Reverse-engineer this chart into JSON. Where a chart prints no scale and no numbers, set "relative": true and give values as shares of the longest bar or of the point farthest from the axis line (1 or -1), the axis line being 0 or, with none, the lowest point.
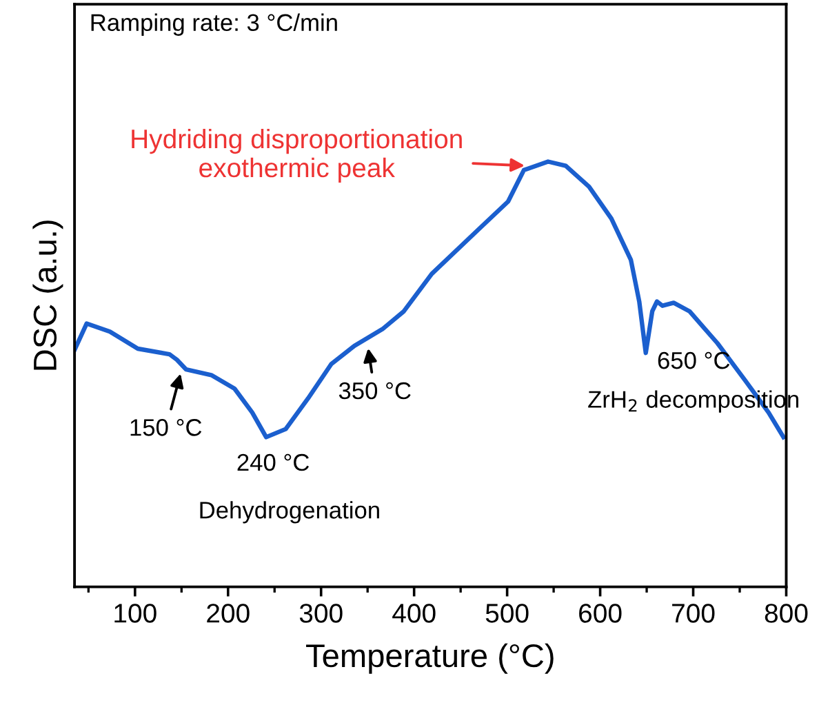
{
  "chart_data": {
    "type": "line",
    "relative": true,
    "xlabel": "Temperature (°C)",
    "ylabel": "DSC (a.u.)",
    "x": [
      35,
      48,
      73,
      103,
      137,
      145,
      155,
      182,
      207,
      226,
      241,
      262,
      286,
      311,
      336,
      366,
      389,
      419,
      469,
      501,
      518,
      544,
      563,
      588,
      612,
      633,
      642,
      649,
      656,
      661,
      667,
      679,
      696,
      726,
      756,
      781,
      797
    ],
    "series": [
      {
        "color": "#1b5fce",
        "values": [
          0.557,
          0.619,
          0.6,
          0.56,
          0.547,
          0.534,
          0.511,
          0.498,
          0.466,
          0.41,
          0.352,
          0.371,
          0.443,
          0.524,
          0.567,
          0.606,
          0.648,
          0.736,
          0.84,
          0.906,
          0.98,
          1,
          0.99,
          0.941,
          0.866,
          0.769,
          0.671,
          0.55,
          0.648,
          0.671,
          0.661,
          0.668,
          0.648,
          0.573,
          0.485,
          0.41,
          0.352
        ]
      }
    ],
    "xlim": [
      35,
      800
    ],
    "xticks": [
      {
        "value": 50,
        "label": null
      },
      100,
      {
        "value": 150,
        "label": null
      },
      200,
      {
        "value": 250,
        "label": null
      },
      300,
      {
        "value": 350,
        "label": null
      },
      400,
      {
        "value": 450,
        "label": null
      },
      500,
      {
        "value": 550,
        "label": null
      },
      600,
      {
        "value": 650,
        "label": null
      },
      700,
      {
        "value": 750,
        "label": null
      },
      800
    ],
    "tick_labels": "x",
    "grid": false,
    "legend": false,
    "marker": "none",
    "line_style": "solid",
    "annotations": [
      "Ramping rate: 3 °C/min",
      {
        "text": "Hydriding disproportionation\nexothermic peak",
        "x": 523,
        "y": 0.99
      },
      {
        "text": "150 °C",
        "x": 150,
        "y": 0.51
      },
      {
        "text": "240 °C",
        "x": 240,
        "y": 0.352
      },
      "Dehydrogenation",
      {
        "text": "350 °C",
        "x": 350,
        "y": 0.57
      },
      {
        "text": "650 °C",
        "x": 650,
        "y": 0.55
      },
      "ZrH$_{2}$ decomposition"
    ]
  }
}
